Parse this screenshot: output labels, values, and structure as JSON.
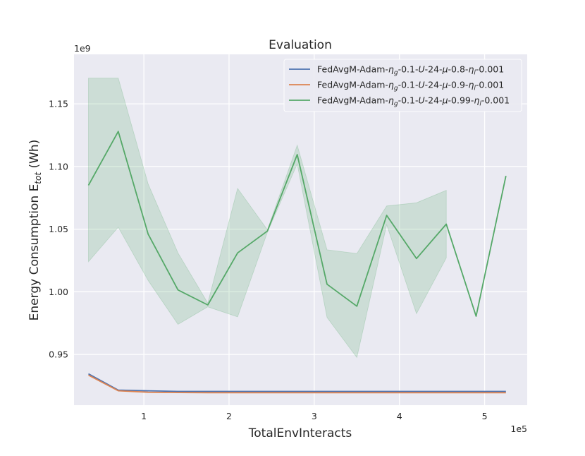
{
  "chart_data": {
    "type": "line",
    "title": "Evaluation",
    "xlabel": "TotalEnvInteracts",
    "ylabel_main": "Energy Consumption E",
    "ylabel_sub": "tot",
    "ylabel_tail": " (Wh)",
    "x_scale_label": "1e5",
    "y_scale_label": "1e9",
    "xlim": [
      0.18,
      5.5
    ],
    "ylim": [
      0.9095,
      1.1895
    ],
    "x_ticks": [
      1,
      2,
      3,
      4,
      5
    ],
    "x_tick_labels": [
      "1",
      "2",
      "3",
      "4",
      "5"
    ],
    "y_ticks": [
      0.95,
      1.0,
      1.05,
      1.1,
      1.15
    ],
    "y_tick_labels": [
      "0.95",
      "1.00",
      "1.05",
      "1.10",
      "1.15"
    ],
    "grid": true,
    "legend_position": "top-right",
    "series": [
      {
        "name": "FedAvgM-Adam-ηg-0.1-U-24-μ-0.8-ηl-0.001",
        "legend": {
          "p1": "FedAvgM-Adam-",
          "g1": "η",
          "s1": "g",
          "p2": "-0.1-",
          "u": "U",
          "p3": "-24-",
          "m": "μ",
          "p4": "-0.8-",
          "g2": "η",
          "s2": "l",
          "p5": "-0.001"
        },
        "color": "#4c72b0",
        "x": [
          0.35,
          0.7,
          1.05,
          1.4,
          1.75,
          2.1,
          2.45,
          2.8,
          3.15,
          3.5,
          3.85,
          4.2,
          4.55,
          4.9,
          5.25
        ],
        "y": [
          0.9345,
          0.9215,
          0.921,
          0.9205,
          0.9205,
          0.9205,
          0.9205,
          0.9205,
          0.9205,
          0.9205,
          0.9205,
          0.9205,
          0.9205,
          0.9205,
          0.9205
        ]
      },
      {
        "name": "FedAvgM-Adam-ηg-0.1-U-24-μ-0.9-ηl-0.001",
        "legend": {
          "p1": "FedAvgM-Adam-",
          "g1": "η",
          "s1": "g",
          "p2": "-0.1-",
          "u": "U",
          "p3": "-24-",
          "m": "μ",
          "p4": "-0.9-",
          "g2": "η",
          "s2": "l",
          "p5": "-0.001"
        },
        "color": "#dd8452",
        "x": [
          0.35,
          0.7,
          1.05,
          1.4,
          1.75,
          2.1,
          2.45,
          2.8,
          3.15,
          3.5,
          3.85,
          4.2,
          4.55,
          4.9,
          5.25
        ],
        "y": [
          0.9335,
          0.921,
          0.9198,
          0.9196,
          0.9195,
          0.9195,
          0.9195,
          0.9195,
          0.9195,
          0.9195,
          0.9195,
          0.9195,
          0.9195,
          0.9195,
          0.9195
        ]
      },
      {
        "name": "FedAvgM-Adam-ηg-0.1-U-24-μ-0.99-ηl-0.001",
        "legend": {
          "p1": "FedAvgM-Adam-",
          "g1": "η",
          "s1": "g",
          "p2": "-0.1-",
          "u": "U",
          "p3": "-24-",
          "m": "μ",
          "p4": "-0.99-",
          "g2": "η",
          "s2": "l",
          "p5": "-0.001"
        },
        "color": "#55a868",
        "x": [
          0.35,
          0.7,
          1.05,
          1.4,
          1.75,
          2.1,
          2.45,
          2.8,
          3.15,
          3.5,
          3.85,
          4.2,
          4.55,
          4.9,
          5.25
        ],
        "y": [
          1.085,
          1.128,
          1.046,
          1.0015,
          0.9895,
          1.031,
          1.0485,
          1.1095,
          1.006,
          0.9885,
          1.061,
          1.0265,
          1.054,
          0.9805,
          1.0925
        ],
        "band_x": [
          0.35,
          0.7,
          1.05,
          1.4,
          1.75,
          2.1,
          2.45,
          2.8,
          3.15,
          3.5,
          3.85,
          4.2,
          4.55
        ],
        "band_upper": [
          1.1705,
          1.1705,
          1.086,
          1.031,
          0.991,
          1.0825,
          1.0495,
          1.117,
          1.0335,
          1.0305,
          1.0685,
          1.071,
          1.081
        ],
        "band_lower": [
          1.024,
          1.0515,
          1.009,
          0.974,
          0.988,
          0.98,
          1.0475,
          1.102,
          0.9795,
          0.9475,
          1.0535,
          0.9825,
          1.027
        ]
      }
    ]
  }
}
